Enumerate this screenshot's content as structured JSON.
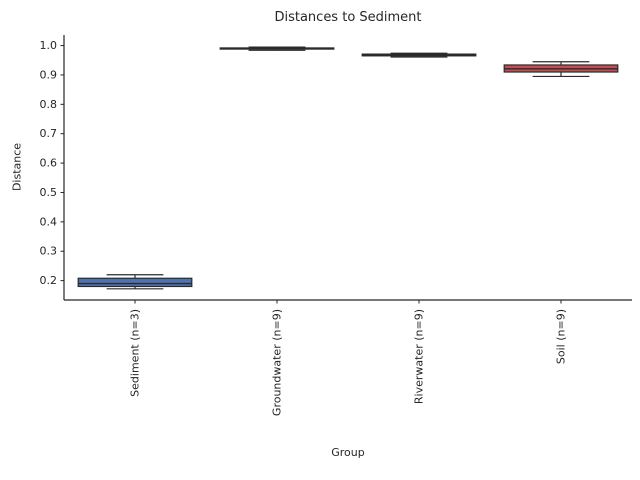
{
  "chart_data": {
    "type": "box",
    "title": "Distances to Sediment",
    "xlabel": "Group",
    "ylabel": "Distance",
    "categories": [
      "Sediment (n=3)",
      "Groundwater (n=9)",
      "Riverwater (n=9)",
      "Soil (n=9)"
    ],
    "yticks": [
      0.2,
      0.3,
      0.4,
      0.5,
      0.6,
      0.7,
      0.8,
      0.9,
      1.0
    ],
    "ylim": [
      0.134,
      1.036
    ],
    "grid": false,
    "legend": "none",
    "boxes": [
      {
        "label": "Sediment (n=3)",
        "whislo": 0.172,
        "q1": 0.18,
        "med": 0.19,
        "q3": 0.208,
        "whishi": 0.22,
        "color": "#4C72B0"
      },
      {
        "label": "Groundwater (n=9)",
        "whislo": 0.984,
        "q1": 0.988,
        "med": 0.99,
        "q3": 0.992,
        "whishi": 0.995,
        "color": "#DD8452"
      },
      {
        "label": "Riverwater (n=9)",
        "whislo": 0.961,
        "q1": 0.965,
        "med": 0.968,
        "q3": 0.971,
        "whishi": 0.974,
        "color": "#55A868"
      },
      {
        "label": "Soil (n=9)",
        "whislo": 0.895,
        "q1": 0.91,
        "med": 0.921,
        "q3": 0.934,
        "whishi": 0.945,
        "color": "#C44E52"
      }
    ],
    "colors": {
      "edge": "#2b2b2b",
      "spine": "#262626",
      "text": "#262626",
      "background": "#ffffff"
    }
  }
}
